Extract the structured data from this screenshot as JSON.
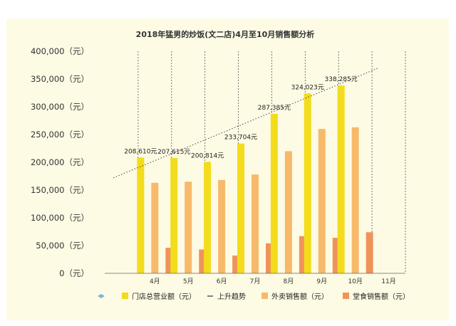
{
  "chart_data": {
    "type": "bar",
    "title": "2018年猛男的炒饭(文二店)4月至10月销售额分析",
    "categories": [
      "4月",
      "5月",
      "6月",
      "7月",
      "8月",
      "9月",
      "10月",
      "11月"
    ],
    "ylim": [
      0,
      400000
    ],
    "yticks": [
      "0（元）",
      "50,000（元）",
      "100,000（元）",
      "150,000（元）",
      "200,000（元）",
      "250,000（元）",
      "300,000（元）",
      "350,000（元）",
      "400,000（元）"
    ],
    "series": [
      {
        "name": "门店总营业额（元）",
        "color": "#f2dc1c",
        "values": [
          208610,
          207615,
          200814,
          233704,
          287385,
          324023,
          338285,
          null
        ]
      },
      {
        "name": "外卖销售额（元）",
        "color": "#f7b96a",
        "values": [
          163000,
          165000,
          168000,
          178000,
          220000,
          260000,
          263000,
          null
        ]
      },
      {
        "name": "堂食销售额（元）",
        "color": "#f0935a",
        "values": [
          46000,
          43000,
          32000,
          54000,
          67000,
          64000,
          74000,
          null
        ]
      }
    ],
    "data_labels": [
      "208,610元",
      "207,615元",
      "200,814元",
      "233,704元",
      "287,385元",
      "324,023元",
      "338,285元"
    ],
    "trendline": {
      "name": "上升趋势",
      "style": "dotted",
      "start": 172000,
      "end": 370000
    },
    "legend_position": "bottom",
    "grid": "vertical dashed"
  }
}
